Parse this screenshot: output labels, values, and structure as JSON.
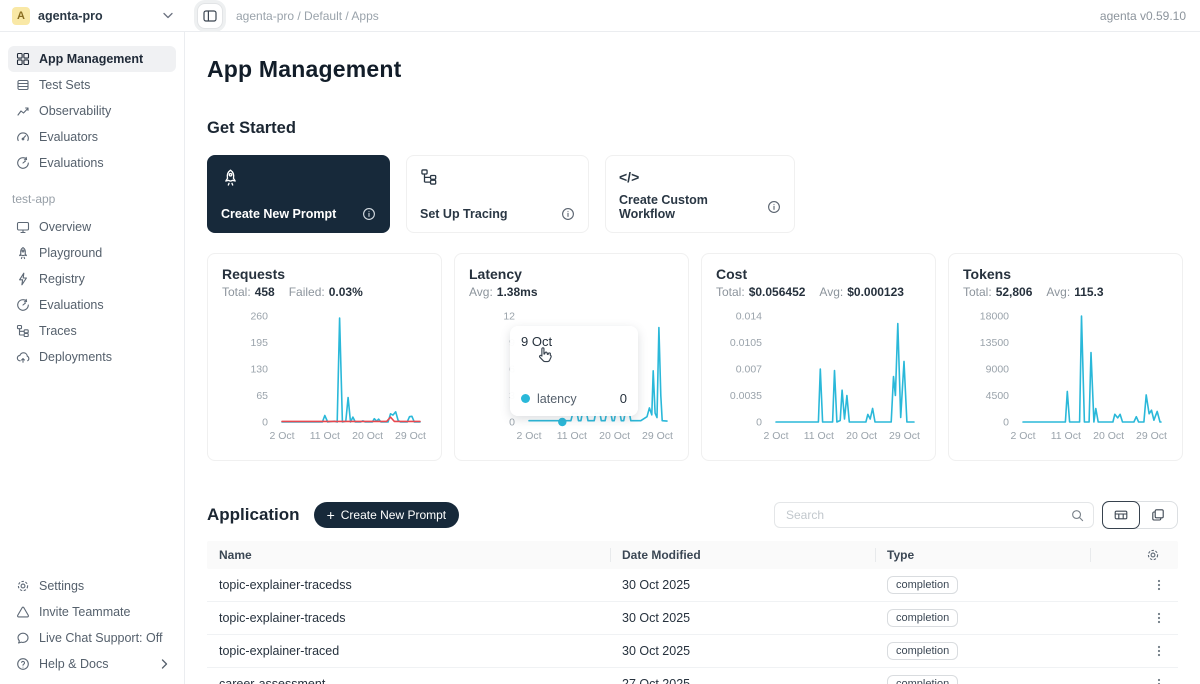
{
  "topbar": {
    "workspace": {
      "avatar_letter": "A",
      "name": "agenta-pro"
    },
    "breadcrumb": "agenta-pro / Default / Apps",
    "version": "agenta v0.59.10"
  },
  "sidebar": {
    "main_items": [
      {
        "label": "App Management"
      },
      {
        "label": "Test Sets"
      },
      {
        "label": "Observability"
      },
      {
        "label": "Evaluators"
      },
      {
        "label": "Evaluations"
      }
    ],
    "section_label": "test-app",
    "app_items": [
      {
        "label": "Overview"
      },
      {
        "label": "Playground"
      },
      {
        "label": "Registry"
      },
      {
        "label": "Evaluations"
      },
      {
        "label": "Traces"
      },
      {
        "label": "Deployments"
      }
    ],
    "bottom_items": [
      {
        "label": "Settings"
      },
      {
        "label": "Invite Teammate"
      },
      {
        "label": "Live Chat Support: Off"
      },
      {
        "label": "Help & Docs"
      }
    ]
  },
  "page": {
    "title": "App Management"
  },
  "get_started": {
    "heading": "Get Started",
    "cards": [
      {
        "label": "Create New Prompt"
      },
      {
        "label": "Set Up Tracing"
      },
      {
        "label": "Create Custom Workflow"
      }
    ]
  },
  "glyphs": {
    "code": "</>",
    "plus": "+"
  },
  "colors": {
    "accent": "#2AB8D9",
    "danger": "#E8484F",
    "dark": "#17293A"
  },
  "chart_data": [
    {
      "id": "requests",
      "type": "line",
      "title": "Requests",
      "stats": [
        {
          "label": "Total:",
          "value": "458"
        },
        {
          "label": "Failed:",
          "value": "0.03%"
        }
      ],
      "xlabel": "date",
      "ylabel": "requests",
      "xlim": [
        2,
        31
      ],
      "ylim": [
        0,
        260
      ],
      "yticks": [
        "260",
        "195",
        "130",
        "65",
        "0"
      ],
      "xticks": [
        {
          "x": 2,
          "label": "2 Oct"
        },
        {
          "x": 11,
          "label": "11 Oct"
        },
        {
          "x": 20,
          "label": "20 Oct"
        },
        {
          "x": 29,
          "label": "29 Oct"
        }
      ],
      "grid": false,
      "legend": false,
      "series": [
        {
          "name": "requests",
          "color": "#2AB8D9",
          "points": [
            [
              2,
              0
            ],
            [
              10.5,
              0
            ],
            [
              11,
              16
            ],
            [
              11.6,
              0
            ],
            [
              13,
              2
            ],
            [
              13.6,
              0
            ],
            [
              14.1,
              255
            ],
            [
              14.7,
              0
            ],
            [
              15.4,
              2
            ],
            [
              15.9,
              60
            ],
            [
              16.4,
              0
            ],
            [
              16.9,
              12
            ],
            [
              17.4,
              0
            ],
            [
              18.5,
              0
            ],
            [
              19,
              3
            ],
            [
              19.5,
              0
            ],
            [
              21,
              0
            ],
            [
              21.4,
              8
            ],
            [
              21.9,
              2
            ],
            [
              22.3,
              7
            ],
            [
              22.8,
              0
            ],
            [
              24.3,
              0
            ],
            [
              24.8,
              20
            ],
            [
              25.3,
              17
            ],
            [
              25.9,
              25
            ],
            [
              26.4,
              4
            ],
            [
              26.9,
              0
            ],
            [
              28.3,
              0
            ],
            [
              28.8,
              13
            ],
            [
              29.3,
              14
            ],
            [
              29.8,
              0
            ],
            [
              31,
              0
            ]
          ]
        },
        {
          "name": "failed",
          "color": "#E8484F",
          "points": [
            [
              2,
              1.5
            ],
            [
              24,
              1.5
            ],
            [
              24.8,
              12
            ],
            [
              25.6,
              1.5
            ],
            [
              31,
              1.5
            ]
          ]
        }
      ]
    },
    {
      "id": "latency",
      "type": "line",
      "title": "Latency",
      "stats": [
        {
          "label": "Avg:",
          "value": "1.38ms"
        }
      ],
      "xlabel": "date",
      "ylabel": "latency",
      "xlim": [
        2,
        31
      ],
      "ylim": [
        0,
        12
      ],
      "yticks": [
        "12",
        "9",
        "6",
        "3",
        "0"
      ],
      "xticks": [
        {
          "x": 2,
          "label": "2 Oct"
        },
        {
          "x": 11,
          "label": "11 Oct"
        },
        {
          "x": 20,
          "label": "20 Oct"
        },
        {
          "x": 29,
          "label": "29 Oct"
        }
      ],
      "grid": false,
      "legend": false,
      "series": [
        {
          "name": "latency",
          "color": "#2AB8D9",
          "points": [
            [
              2,
              0.15
            ],
            [
              10.8,
              0.15
            ],
            [
              11.2,
              1
            ],
            [
              12.1,
              1
            ],
            [
              12.4,
              0.15
            ],
            [
              12.9,
              0.15
            ],
            [
              13.2,
              1
            ],
            [
              14.1,
              1
            ],
            [
              14.4,
              0.15
            ],
            [
              15.7,
              0.15
            ],
            [
              16,
              1
            ],
            [
              16.9,
              1
            ],
            [
              17.2,
              0.15
            ],
            [
              18,
              0.15
            ],
            [
              18.3,
              1
            ],
            [
              19.2,
              1
            ],
            [
              19.5,
              0.15
            ],
            [
              19.9,
              0.15
            ],
            [
              20.2,
              1
            ],
            [
              21.1,
              1
            ],
            [
              21.4,
              0.15
            ],
            [
              21.9,
              0.15
            ],
            [
              22.2,
              1
            ],
            [
              23.1,
              1
            ],
            [
              23.4,
              0.15
            ],
            [
              25.5,
              0.15
            ],
            [
              26.8,
              0.6
            ],
            [
              27.3,
              1.6
            ],
            [
              27.8,
              0.8
            ],
            [
              28.1,
              5.8
            ],
            [
              28.5,
              1
            ],
            [
              28.9,
              0.5
            ],
            [
              29.3,
              10.7
            ],
            [
              29.7,
              3
            ],
            [
              30,
              0.15
            ],
            [
              31,
              0.1
            ]
          ]
        }
      ],
      "active_point": {
        "x": 9,
        "y": 0
      },
      "tooltip": {
        "date": "9 Oct",
        "series": "latency",
        "value": "0"
      }
    },
    {
      "id": "cost",
      "type": "line",
      "title": "Cost",
      "stats": [
        {
          "label": "Total:",
          "value": "$0.056452"
        },
        {
          "label": "Avg:",
          "value": "$0.000123"
        }
      ],
      "xlabel": "date",
      "ylabel": "cost",
      "xlim": [
        2,
        31
      ],
      "ylim": [
        0,
        0.014
      ],
      "yticks": [
        "0.014",
        "0.0105",
        "0.007",
        "0.0035",
        "0"
      ],
      "xticks": [
        {
          "x": 2,
          "label": "2 Oct"
        },
        {
          "x": 11,
          "label": "11 Oct"
        },
        {
          "x": 20,
          "label": "20 Oct"
        },
        {
          "x": 29,
          "label": "29 Oct"
        }
      ],
      "grid": false,
      "legend": false,
      "series": [
        {
          "name": "cost",
          "color": "#2AB8D9",
          "points": [
            [
              2,
              0
            ],
            [
              10.9,
              0
            ],
            [
              11.3,
              0.007
            ],
            [
              11.8,
              0
            ],
            [
              13.9,
              0
            ],
            [
              14.3,
              0.0068
            ],
            [
              14.8,
              0
            ],
            [
              15.5,
              0.0002
            ],
            [
              15.9,
              0.0042
            ],
            [
              16.4,
              0.0004
            ],
            [
              16.9,
              0.0035
            ],
            [
              17.4,
              0
            ],
            [
              20.9,
              0
            ],
            [
              21.3,
              0.001
            ],
            [
              21.8,
              0.0004
            ],
            [
              22.3,
              0.0018
            ],
            [
              22.8,
              0
            ],
            [
              26.2,
              0
            ],
            [
              26.7,
              0.006
            ],
            [
              27.1,
              0.0035
            ],
            [
              27.6,
              0.013
            ],
            [
              28.2,
              0.0006
            ],
            [
              28.9,
              0.008
            ],
            [
              29.5,
              0
            ],
            [
              31,
              0
            ]
          ]
        }
      ]
    },
    {
      "id": "tokens",
      "type": "line",
      "title": "Tokens",
      "stats": [
        {
          "label": "Total:",
          "value": "52,806"
        },
        {
          "label": "Avg:",
          "value": "115.3"
        }
      ],
      "xlabel": "date",
      "ylabel": "tokens",
      "xlim": [
        2,
        31
      ],
      "ylim": [
        0,
        18000
      ],
      "yticks": [
        "18000",
        "13500",
        "9000",
        "4500",
        "0"
      ],
      "xticks": [
        {
          "x": 2,
          "label": "2 Oct"
        },
        {
          "x": 11,
          "label": "11 Oct"
        },
        {
          "x": 20,
          "label": "20 Oct"
        },
        {
          "x": 29,
          "label": "29 Oct"
        }
      ],
      "grid": false,
      "legend": false,
      "series": [
        {
          "name": "tokens",
          "color": "#2AB8D9",
          "points": [
            [
              2,
              0
            ],
            [
              10.9,
              0
            ],
            [
              11.3,
              5200
            ],
            [
              11.8,
              0
            ],
            [
              13.9,
              0
            ],
            [
              14.3,
              18000
            ],
            [
              14.9,
              0
            ],
            [
              15.9,
              0
            ],
            [
              16.3,
              11800
            ],
            [
              16.9,
              0
            ],
            [
              17.3,
              2300
            ],
            [
              17.8,
              0
            ],
            [
              20.9,
              0
            ],
            [
              21.3,
              1300
            ],
            [
              21.9,
              700
            ],
            [
              22.4,
              1300
            ],
            [
              22.9,
              0
            ],
            [
              25.3,
              0
            ],
            [
              25.8,
              900
            ],
            [
              26.3,
              0
            ],
            [
              27.4,
              0
            ],
            [
              27.9,
              4600
            ],
            [
              28.5,
              1400
            ],
            [
              29,
              2000
            ],
            [
              29.5,
              300
            ],
            [
              30.2,
              1800
            ],
            [
              30.8,
              0
            ],
            [
              31,
              0
            ]
          ]
        }
      ]
    }
  ],
  "application": {
    "heading": "Application",
    "create_button": "Create New Prompt",
    "search_placeholder": "Search",
    "table": {
      "columns": [
        "Name",
        "Date Modified",
        "Type"
      ],
      "rows": [
        {
          "name": "topic-explainer-tracedss",
          "date": "30 Oct 2025",
          "type": "completion"
        },
        {
          "name": "topic-explainer-traceds",
          "date": "30 Oct 2025",
          "type": "completion"
        },
        {
          "name": "topic-explainer-traced",
          "date": "30 Oct 2025",
          "type": "completion"
        },
        {
          "name": "career-assessment",
          "date": "27 Oct 2025",
          "type": "completion"
        }
      ]
    }
  }
}
